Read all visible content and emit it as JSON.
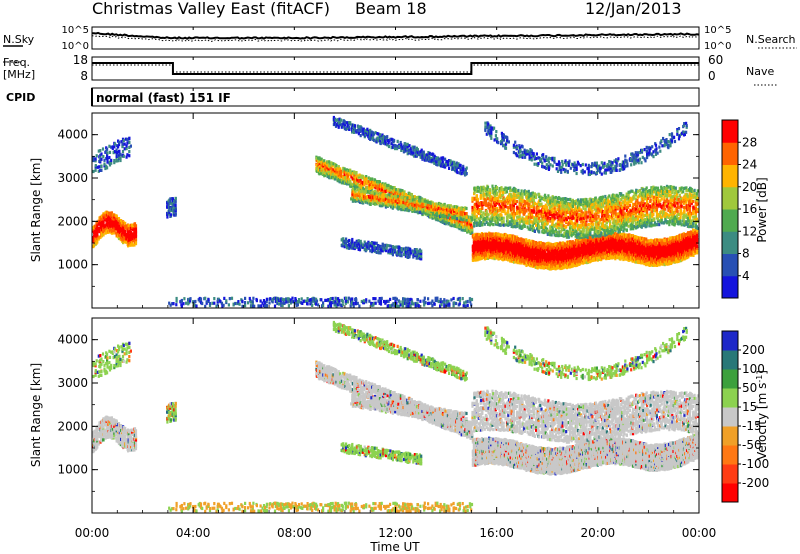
{
  "header": {
    "radar": "Christmas Valley East (fitACF)",
    "beam": "Beam 18",
    "date": "12/Jan/2013"
  },
  "noise_panel": {
    "left_label": "N.Sky",
    "left_ticks": [
      "10^5",
      "10^0"
    ],
    "right_ticks": [
      "10^5",
      "10^0"
    ],
    "right_label": "N.Search"
  },
  "freq_panel": {
    "left_label_1": "Freq.",
    "left_label_2": "[MHz]",
    "left_ticks": [
      "18",
      "8"
    ],
    "right_ticks": [
      "60",
      "0"
    ],
    "right_label": "Nave"
  },
  "cpid_panel": {
    "label": "CPID",
    "value": "normal (fast) 151 IF"
  },
  "chart_data": [
    {
      "type": "heatmap",
      "name": "power",
      "ylabel": "Slant Range [km]",
      "yticks": [
        "1000",
        "2000",
        "3000",
        "4000"
      ],
      "ylim": [
        0,
        4500
      ],
      "xlim": [
        0,
        24
      ],
      "colorbar_label": "Power [dB]",
      "colorbar_ticks": [
        "4",
        "8",
        "12",
        "16",
        "20",
        "24",
        "28"
      ],
      "colors": [
        "#1414dc",
        "#2850b4",
        "#3c8c82",
        "#50aa50",
        "#a0c83c",
        "#ffb400",
        "#ff6400",
        "#ff0000"
      ]
    },
    {
      "type": "heatmap",
      "name": "velocity",
      "ylabel": "Slant Range [km]",
      "yticks": [
        "1000",
        "2000",
        "3000",
        "4000"
      ],
      "ylim": [
        0,
        4500
      ],
      "xlim": [
        0,
        24
      ],
      "colorbar_label_main": "Velocity [m s",
      "colorbar_label_sup": "-1",
      "colorbar_label_end": "]",
      "colorbar_ticks": [
        "200",
        "100",
        "50",
        "15",
        "-15",
        "-50",
        "-100",
        "-200"
      ],
      "colors": [
        "#1e28c8",
        "#287878",
        "#3ca03c",
        "#8cd250",
        "#c8c8c8",
        "#f0a028",
        "#ff7814",
        "#ff3c14",
        "#ff0000"
      ]
    }
  ],
  "time_axis": {
    "label": "Time UT",
    "ticks": [
      "00:00",
      "04:00",
      "08:00",
      "12:00",
      "16:00",
      "20:00",
      "00:00"
    ]
  }
}
